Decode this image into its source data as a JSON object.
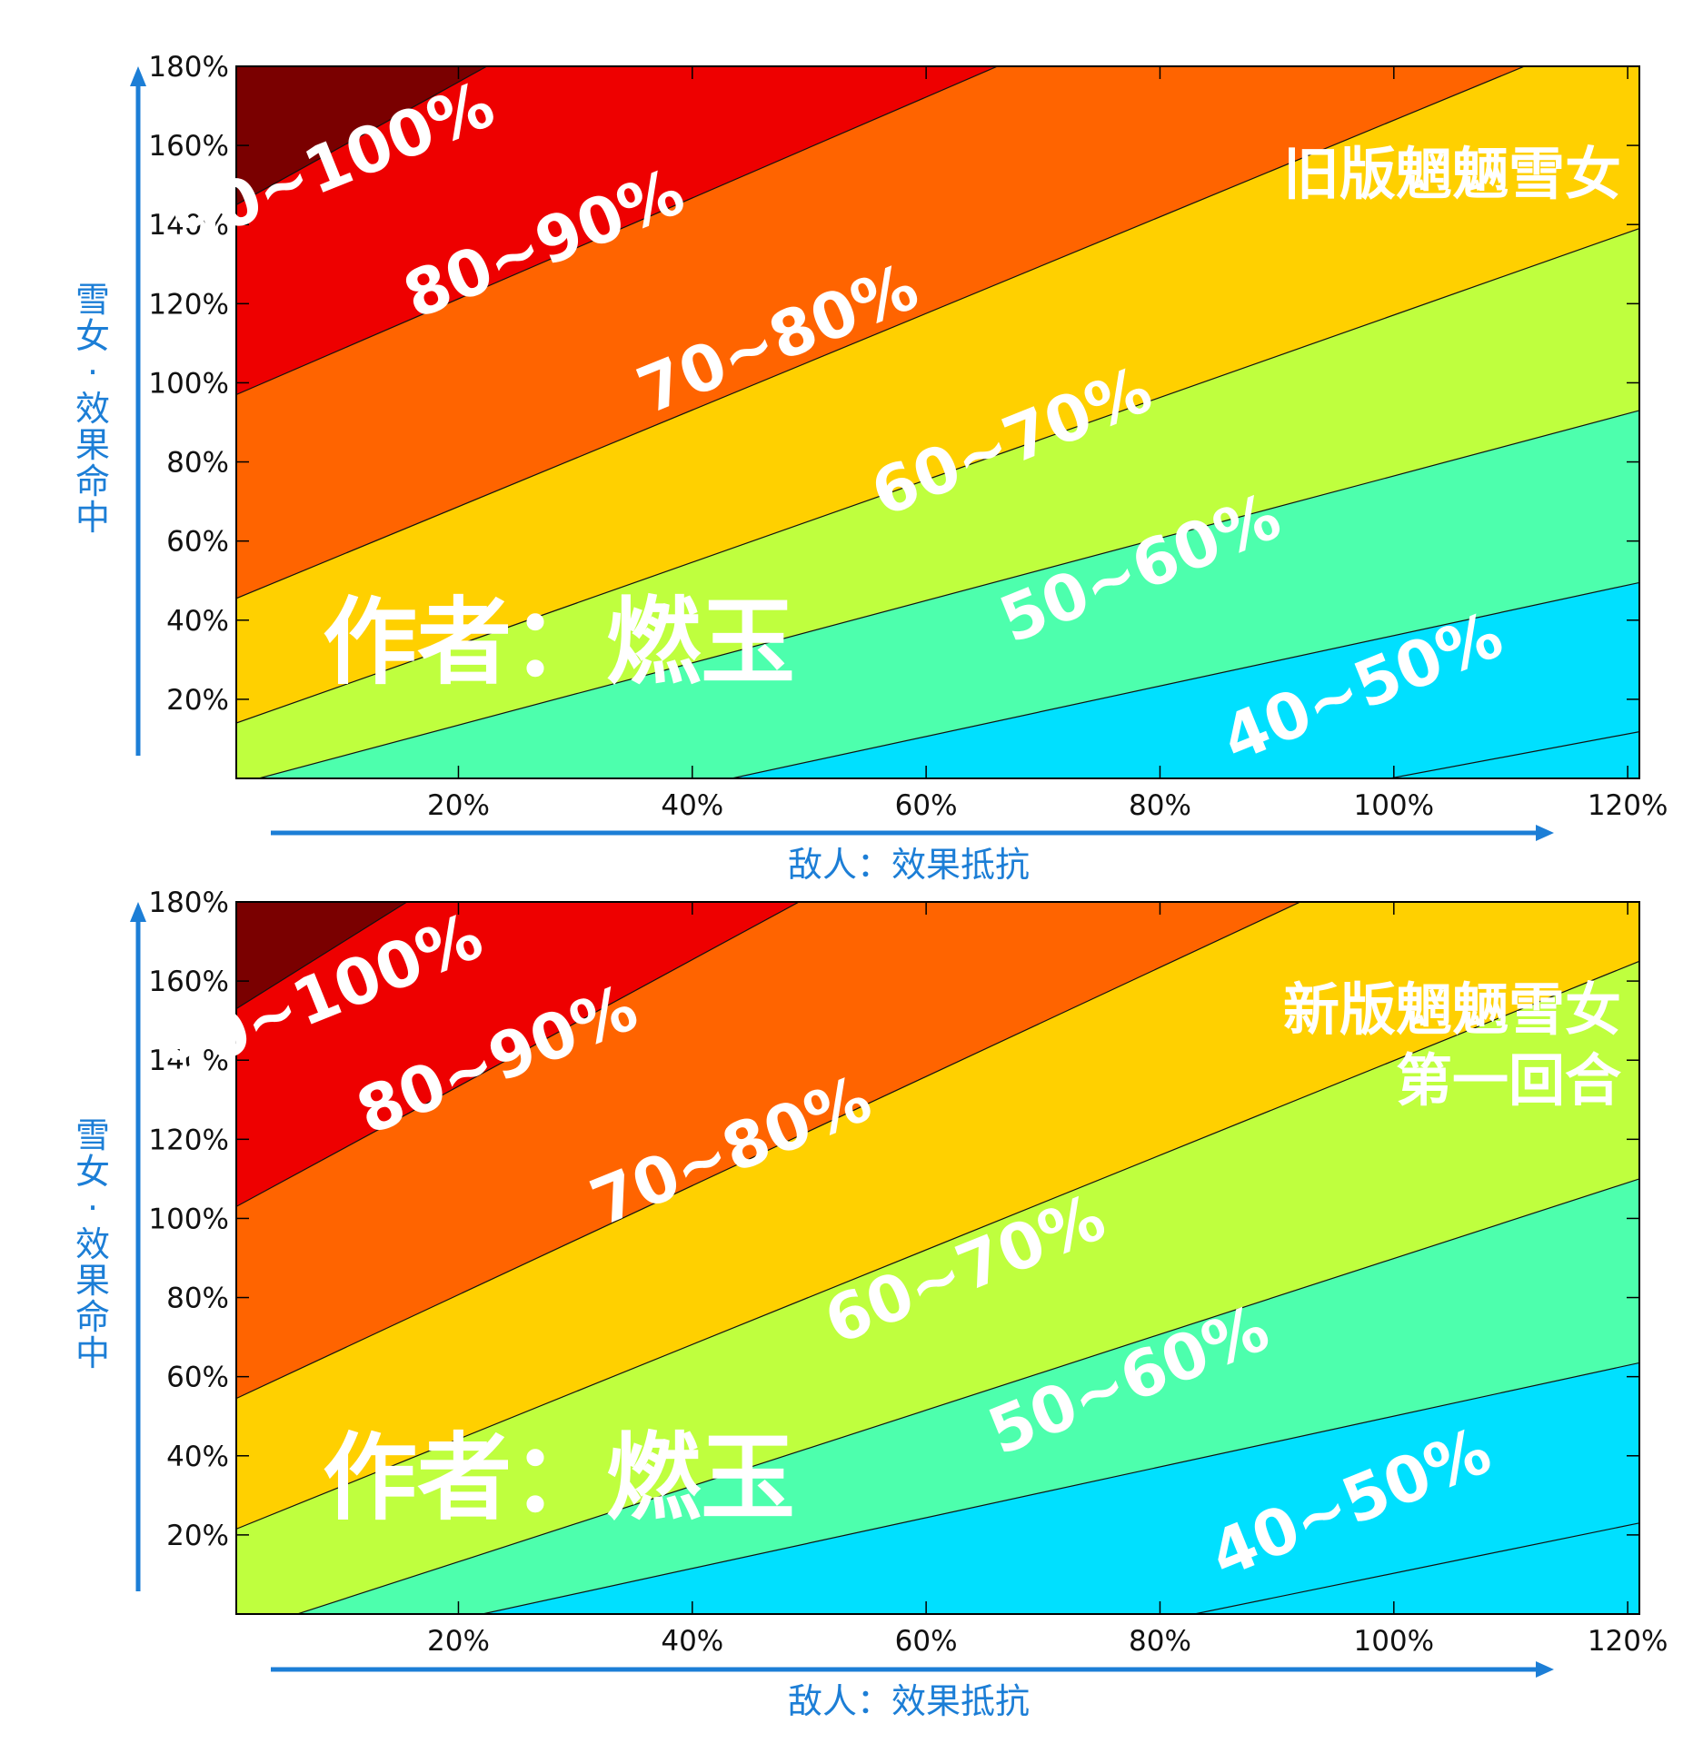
{
  "chart_data": [
    {
      "type": "area",
      "title_lines": [
        "旧版魍魉雪女"
      ],
      "xlabel": "敌人：效果抵抗",
      "ylabel": "雪女·效果命中",
      "xlim": [
        1,
        121
      ],
      "ylim": [
        0,
        180
      ],
      "x_ticks": [
        20,
        40,
        60,
        80,
        100,
        120
      ],
      "x_tick_labels": [
        "20%",
        "40%",
        "60%",
        "80%",
        "100%",
        "120%"
      ],
      "y_ticks": [
        20,
        40,
        60,
        80,
        100,
        120,
        140,
        160,
        180
      ],
      "y_tick_labels": [
        "20%",
        "40%",
        "60%",
        "80%",
        "100%",
        "120%",
        "140%",
        "160%",
        "180%"
      ],
      "contour_lines": [
        {
          "level": 30,
          "x": [
            1,
            121
          ],
          "y": [
            -54.5,
            11.8
          ]
        },
        {
          "level": 40,
          "x": [
            1,
            121
          ],
          "y": [
            -27,
            49.5
          ]
        },
        {
          "level": 50,
          "x": [
            1,
            121
          ],
          "y": [
            -1.5,
            93
          ]
        },
        {
          "level": 60,
          "x": [
            1,
            121
          ],
          "y": [
            14,
            139
          ]
        },
        {
          "level": 70,
          "x": [
            1,
            121
          ],
          "y": [
            45.5,
            192
          ]
        },
        {
          "level": 80,
          "x": [
            1,
            121
          ],
          "y": [
            97,
            250
          ]
        },
        {
          "level": 90,
          "x": [
            1,
            121
          ],
          "y": [
            145,
            341
          ]
        }
      ],
      "bands": [
        {
          "label": "40~50%",
          "color": "#4dffad",
          "label_x": 98,
          "label_y": 18
        },
        {
          "label": "50~60%",
          "color": "#bfff3e",
          "label_x": 79,
          "label_y": 48
        },
        {
          "label": "60~70%",
          "color": "#ffd000",
          "label_x": 68,
          "label_y": 80
        },
        {
          "label": "70~80%",
          "color": "#ff6400",
          "label_x": 48,
          "label_y": 106
        },
        {
          "label": "80~90%",
          "color": "#ee0000",
          "label_x": 28,
          "label_y": 130
        },
        {
          "label": "90~100%",
          "color": "#7a0000",
          "label_x": 10,
          "label_y": 150
        }
      ],
      "below_color": "#00e0ff",
      "watermark": "作者：燃玉"
    },
    {
      "type": "area",
      "title_lines": [
        "新版魍魉雪女",
        "第一回合"
      ],
      "xlabel": "敌人：效果抵抗",
      "ylabel": "雪女·效果命中",
      "xlim": [
        1,
        121
      ],
      "ylim": [
        0,
        180
      ],
      "x_ticks": [
        20,
        40,
        60,
        80,
        100,
        120
      ],
      "x_tick_labels": [
        "20%",
        "40%",
        "60%",
        "80%",
        "100%",
        "120%"
      ],
      "y_ticks": [
        20,
        40,
        60,
        80,
        100,
        120,
        140,
        160,
        180
      ],
      "y_tick_labels": [
        "20%",
        "40%",
        "60%",
        "80%",
        "100%",
        "120%",
        "140%",
        "160%",
        "180%"
      ],
      "contour_lines": [
        {
          "level": 30,
          "x": [
            1,
            121
          ],
          "y": [
            -49.5,
            23
          ]
        },
        {
          "level": 40,
          "x": [
            1,
            121
          ],
          "y": [
            -13.5,
            63.5
          ]
        },
        {
          "level": 50,
          "x": [
            1,
            121
          ],
          "y": [
            -5,
            110
          ]
        },
        {
          "level": 60,
          "x": [
            1,
            121
          ],
          "y": [
            21.5,
            165
          ]
        },
        {
          "level": 70,
          "x": [
            1,
            121
          ],
          "y": [
            54.5,
            220
          ]
        },
        {
          "level": 80,
          "x": [
            1,
            121
          ],
          "y": [
            103,
            295
          ]
        },
        {
          "level": 90,
          "x": [
            1,
            121
          ],
          "y": [
            153,
            375
          ]
        }
      ],
      "bands": [
        {
          "label": "40~50%",
          "color": "#4dffad",
          "label_x": 97,
          "label_y": 23
        },
        {
          "label": "50~60%",
          "color": "#bfff3e",
          "label_x": 78,
          "label_y": 54
        },
        {
          "label": "60~70%",
          "color": "#ffd000",
          "label_x": 64,
          "label_y": 82
        },
        {
          "label": "70~80%",
          "color": "#ff6400",
          "label_x": 44,
          "label_y": 112
        },
        {
          "label": "80~90%",
          "color": "#ee0000",
          "label_x": 24,
          "label_y": 135
        },
        {
          "label": "90~100%",
          "color": "#7a0000",
          "label_x": 9,
          "label_y": 151
        }
      ],
      "below_color": "#00e0ff",
      "watermark": "作者：燃玉"
    }
  ],
  "colors": {
    "axis_caption": "#1c7ed6",
    "contour_line": "#111111",
    "label": "#ffffff"
  }
}
